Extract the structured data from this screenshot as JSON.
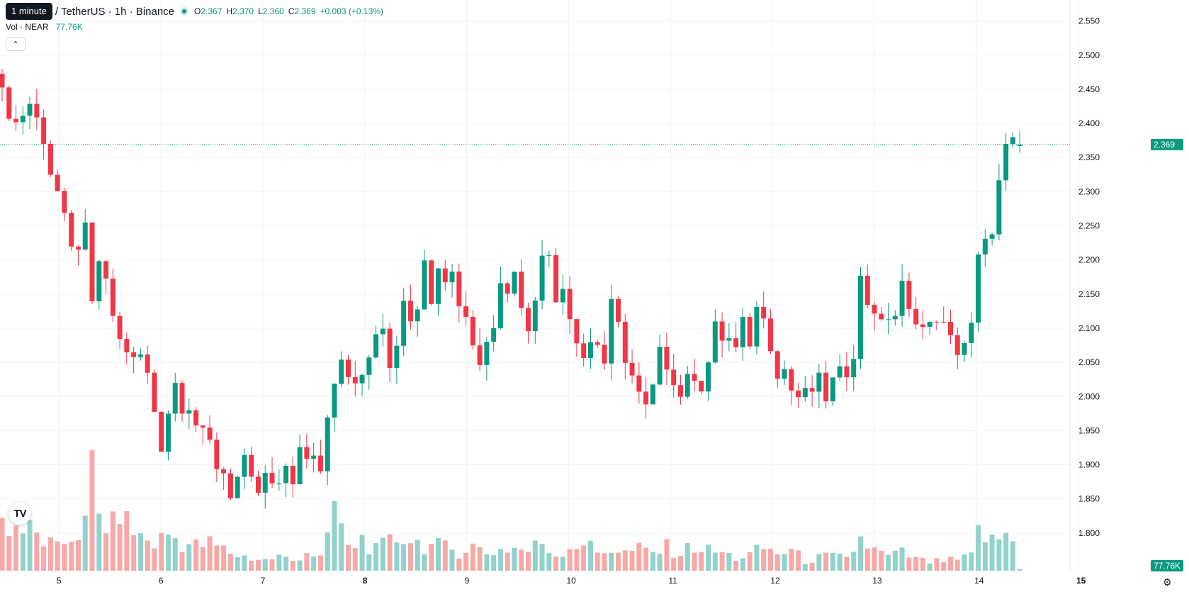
{
  "legend": {
    "tooltip": "1 minute",
    "symbol": "/ TetherUS · 1h · Binance",
    "o_label": "O",
    "o_value": "2.367",
    "h_label": "H",
    "h_value": "2.370",
    "l_label": "L",
    "l_value": "2.360",
    "c_label": "C",
    "c_value": "2.369",
    "change": "+0.003 (+0.13%)",
    "vol_label": "Vol · NEAR",
    "vol_value": "77.76K"
  },
  "icons": {
    "collapse": "chevron-up-icon",
    "logo": "tradingview-logo-icon",
    "settings": "gear-icon"
  },
  "colors": {
    "up": "#089981",
    "down": "#f23645",
    "up_vol": "#92d2cc",
    "down_vol": "#f7a9a7",
    "grid": "#f0f3fa"
  },
  "chart_data": {
    "type": "candlestick",
    "ylim": [
      1.75,
      2.56
    ],
    "y_ticks": [
      "1.800",
      "1.850",
      "1.900",
      "1.950",
      "2.000",
      "2.050",
      "2.100",
      "2.150",
      "2.200",
      "2.250",
      "2.300",
      "2.350",
      "2.400",
      "2.450",
      "2.500",
      "2.550"
    ],
    "x_labels": [
      "5",
      "6",
      "7",
      "8",
      "9",
      "10",
      "11",
      "12",
      "13",
      "14",
      "15"
    ],
    "bold_x_labels": [
      "8",
      "15"
    ],
    "last_price": "2.369",
    "last_volume": "77.76K",
    "close_path": [
      [
        0,
        2.44
      ],
      [
        2,
        2.4
      ],
      [
        4,
        2.43
      ],
      [
        6,
        2.38
      ],
      [
        7,
        2.33
      ],
      [
        8,
        2.3
      ],
      [
        10,
        2.21
      ],
      [
        12,
        2.24
      ],
      [
        13,
        2.13
      ],
      [
        14,
        2.2
      ],
      [
        16,
        2.12
      ],
      [
        17,
        2.08
      ],
      [
        18,
        2.07
      ],
      [
        19,
        2.05
      ],
      [
        20,
        2.06
      ],
      [
        21,
        2.03
      ],
      [
        22,
        1.98
      ],
      [
        23,
        1.93
      ],
      [
        24,
        1.98
      ],
      [
        25,
        2.02
      ],
      [
        26,
        1.99
      ],
      [
        27,
        1.99
      ],
      [
        28,
        1.96
      ],
      [
        29,
        1.94
      ],
      [
        30,
        1.93
      ],
      [
        31,
        1.9
      ],
      [
        32,
        1.89
      ],
      [
        33,
        1.86
      ],
      [
        34,
        1.88
      ],
      [
        35,
        1.9
      ],
      [
        36,
        1.87
      ],
      [
        37,
        1.86
      ],
      [
        38,
        1.88
      ],
      [
        39,
        1.87
      ],
      [
        40,
        1.86
      ],
      [
        41,
        1.9
      ],
      [
        42,
        1.88
      ],
      [
        43,
        1.92
      ],
      [
        44,
        1.9
      ],
      [
        45,
        1.92
      ],
      [
        46,
        1.89
      ],
      [
        47,
        1.98
      ],
      [
        48,
        2.03
      ],
      [
        49,
        2.06
      ],
      [
        50,
        2.04
      ],
      [
        51,
        2.01
      ],
      [
        52,
        2.03
      ],
      [
        53,
        2.06
      ],
      [
        54,
        2.08
      ],
      [
        55,
        2.1
      ],
      [
        56,
        2.05
      ],
      [
        57,
        2.08
      ],
      [
        58,
        2.15
      ],
      [
        59,
        2.12
      ],
      [
        60,
        2.14
      ],
      [
        61,
        2.19
      ],
      [
        62,
        2.15
      ],
      [
        63,
        2.2
      ],
      [
        64,
        2.18
      ],
      [
        65,
        2.18
      ],
      [
        66,
        2.14
      ],
      [
        67,
        2.12
      ],
      [
        68,
        2.08
      ],
      [
        69,
        2.05
      ],
      [
        70,
        2.08
      ],
      [
        71,
        2.11
      ],
      [
        72,
        2.18
      ],
      [
        73,
        2.16
      ],
      [
        74,
        2.18
      ],
      [
        75,
        2.14
      ],
      [
        76,
        2.09
      ],
      [
        77,
        2.15
      ],
      [
        78,
        2.22
      ],
      [
        79,
        2.2
      ],
      [
        80,
        2.14
      ],
      [
        81,
        2.17
      ],
      [
        82,
        2.12
      ],
      [
        83,
        2.09
      ],
      [
        84,
        2.06
      ],
      [
        85,
        2.08
      ],
      [
        86,
        2.08
      ],
      [
        87,
        2.05
      ],
      [
        88,
        2.13
      ],
      [
        89,
        2.1
      ],
      [
        90,
        2.06
      ],
      [
        91,
        2.03
      ],
      [
        92,
        2.0
      ],
      [
        93,
        1.98
      ],
      [
        94,
        2.01
      ],
      [
        95,
        2.06
      ],
      [
        96,
        2.05
      ],
      [
        97,
        2.03
      ],
      [
        98,
        2.0
      ],
      [
        99,
        2.04
      ],
      [
        100,
        2.01
      ],
      [
        101,
        2.02
      ],
      [
        102,
        2.06
      ],
      [
        103,
        2.11
      ],
      [
        104,
        2.07
      ],
      [
        105,
        2.09
      ],
      [
        106,
        2.07
      ],
      [
        107,
        2.11
      ],
      [
        108,
        2.06
      ],
      [
        109,
        2.14
      ],
      [
        110,
        2.11
      ],
      [
        111,
        2.08
      ],
      [
        112,
        2.04
      ],
      [
        113,
        2.04
      ],
      [
        114,
        2.01
      ],
      [
        115,
        2.0
      ],
      [
        116,
        2.0
      ],
      [
        117,
        2.01
      ],
      [
        118,
        2.02
      ],
      [
        119,
        2.0
      ],
      [
        120,
        2.02
      ],
      [
        121,
        2.03
      ],
      [
        122,
        2.04
      ],
      [
        123,
        2.07
      ],
      [
        124,
        2.17
      ],
      [
        125,
        2.14
      ],
      [
        126,
        2.13
      ],
      [
        127,
        2.1
      ],
      [
        128,
        2.12
      ],
      [
        129,
        2.12
      ],
      [
        130,
        2.16
      ],
      [
        131,
        2.12
      ],
      [
        132,
        2.12
      ],
      [
        133,
        2.1
      ],
      [
        134,
        2.1
      ],
      [
        135,
        2.12
      ],
      [
        136,
        2.1
      ],
      [
        137,
        2.08
      ],
      [
        138,
        2.07
      ],
      [
        139,
        2.08
      ],
      [
        140,
        2.1
      ],
      [
        141,
        2.2
      ],
      [
        142,
        2.22
      ],
      [
        143,
        2.25
      ],
      [
        144,
        2.31
      ],
      [
        145,
        2.36
      ],
      [
        146,
        2.367
      ],
      [
        147,
        2.369
      ]
    ],
    "volume_path": [
      [
        0,
        70
      ],
      [
        4,
        55
      ],
      [
        6,
        42
      ],
      [
        8,
        30
      ],
      [
        10,
        50
      ],
      [
        12,
        62
      ],
      [
        13,
        140
      ],
      [
        14,
        75
      ],
      [
        16,
        60
      ],
      [
        17,
        95
      ],
      [
        18,
        65
      ],
      [
        20,
        48
      ],
      [
        22,
        38
      ],
      [
        24,
        52
      ],
      [
        26,
        40
      ],
      [
        28,
        35
      ],
      [
        30,
        38
      ],
      [
        32,
        30
      ],
      [
        34,
        22
      ],
      [
        36,
        18
      ],
      [
        38,
        15
      ],
      [
        40,
        20
      ],
      [
        42,
        14
      ],
      [
        44,
        28
      ],
      [
        46,
        18
      ],
      [
        47,
        40
      ],
      [
        48,
        95
      ],
      [
        50,
        30
      ],
      [
        52,
        45
      ],
      [
        54,
        28
      ],
      [
        56,
        40
      ],
      [
        58,
        50
      ],
      [
        60,
        40
      ],
      [
        62,
        35
      ],
      [
        64,
        32
      ],
      [
        66,
        28
      ],
      [
        68,
        35
      ],
      [
        70,
        25
      ],
      [
        72,
        30
      ],
      [
        74,
        32
      ],
      [
        76,
        28
      ],
      [
        78,
        40
      ],
      [
        80,
        22
      ],
      [
        82,
        35
      ],
      [
        84,
        40
      ],
      [
        86,
        25
      ],
      [
        88,
        32
      ],
      [
        90,
        25
      ],
      [
        92,
        30
      ],
      [
        94,
        25
      ],
      [
        96,
        32
      ],
      [
        98,
        25
      ],
      [
        100,
        35
      ],
      [
        102,
        28
      ],
      [
        104,
        25
      ],
      [
        106,
        18
      ],
      [
        108,
        22
      ],
      [
        110,
        32
      ],
      [
        112,
        25
      ],
      [
        114,
        28
      ],
      [
        116,
        14
      ],
      [
        118,
        18
      ],
      [
        120,
        20
      ],
      [
        122,
        16
      ],
      [
        124,
        45
      ],
      [
        126,
        28
      ],
      [
        128,
        20
      ],
      [
        130,
        25
      ],
      [
        132,
        16
      ],
      [
        134,
        12
      ],
      [
        136,
        14
      ],
      [
        138,
        15
      ],
      [
        140,
        20
      ],
      [
        141,
        55
      ],
      [
        143,
        40
      ],
      [
        145,
        52
      ],
      [
        146,
        40
      ],
      [
        147,
        3
      ]
    ]
  }
}
